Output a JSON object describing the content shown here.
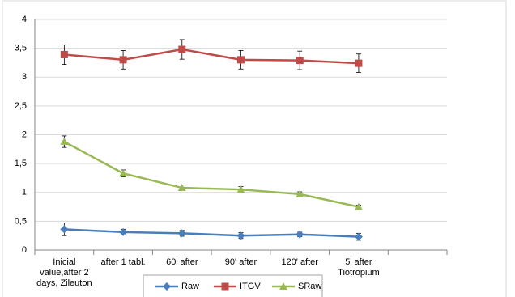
{
  "chart_data": {
    "type": "line",
    "categories": [
      "Inicial value,after 2 days, Zileuton",
      "after 1 tabl.",
      "60' after",
      "90' after",
      "120' after",
      "5' after Tiotropium",
      null
    ],
    "series": [
      {
        "name": "Raw",
        "color": "#4a7ebb",
        "marker": "diamond",
        "values": [
          0.36,
          0.31,
          0.29,
          0.25,
          0.27,
          0.23,
          null
        ],
        "errors": [
          0.11,
          0.05,
          0.05,
          0.05,
          0.04,
          0.06,
          null
        ]
      },
      {
        "name": "ITGV",
        "color": "#be4b48",
        "marker": "square",
        "values": [
          3.39,
          3.3,
          3.48,
          3.3,
          3.29,
          3.24,
          null
        ],
        "errors": [
          0.17,
          0.16,
          0.17,
          0.16,
          0.16,
          0.16,
          null
        ]
      },
      {
        "name": "SRaw",
        "color": "#98b954",
        "marker": "triangle",
        "values": [
          1.88,
          1.33,
          1.08,
          1.05,
          0.97,
          0.75,
          null
        ],
        "errors": [
          0.1,
          0.06,
          0.05,
          0.05,
          0.04,
          0.03,
          null
        ]
      }
    ],
    "ylim": [
      0,
      4
    ],
    "yticks": [
      0,
      {
        "value": 0.5,
        "label": "0,5"
      },
      1,
      {
        "value": 1.5,
        "label": "1,5"
      },
      2,
      {
        "value": 2.5,
        "label": "2,5"
      },
      3,
      {
        "value": 3.5,
        "label": "3,5"
      },
      4
    ],
    "grid": true,
    "legend": "bottom"
  }
}
